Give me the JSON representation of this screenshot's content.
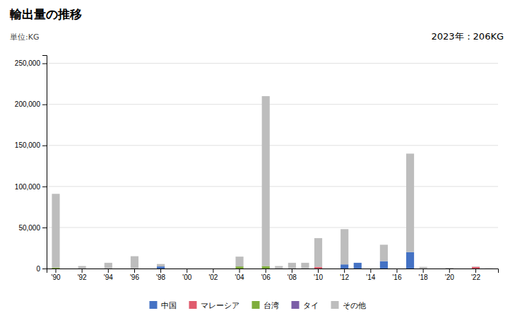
{
  "chart_data": {
    "type": "bar",
    "title": "輸出量の推移",
    "subtitle": "単位:KG",
    "annotations": [
      "2023年：206KG"
    ],
    "stacked": true,
    "grid": true,
    "legend": "bottom",
    "categories": [
      "'90",
      null,
      "'92",
      null,
      "'94",
      null,
      "'96",
      null,
      "'98",
      null,
      "'00",
      null,
      "'02",
      null,
      "'04",
      null,
      "'06",
      null,
      "'08",
      null,
      "'10",
      null,
      "'12",
      null,
      "'14",
      null,
      "'16",
      null,
      "'18",
      null,
      "'20",
      null,
      "'22",
      null
    ],
    "ylim": [
      0,
      260000
    ],
    "yticks": [
      0,
      {
        "value": 50000,
        "label": "50,000"
      },
      {
        "value": 100000,
        "label": "100,000"
      },
      {
        "value": 150000,
        "label": "150,000"
      },
      {
        "value": 200000,
        "label": "200,000"
      },
      {
        "value": 250000,
        "label": "250,000"
      }
    ],
    "series": [
      {
        "name": "中国",
        "color": "#4472c4",
        "values": [
          0,
          0,
          0,
          0,
          0,
          0,
          0,
          0,
          2500,
          0,
          0,
          0,
          0,
          0,
          0,
          0,
          0,
          0,
          0,
          0,
          0,
          0,
          5000,
          7000,
          0,
          9000,
          0,
          20000,
          0,
          0,
          0,
          0,
          0,
          0
        ]
      },
      {
        "name": "マレーシア",
        "color": "#e05c6e",
        "values": [
          0,
          0,
          0,
          0,
          0,
          0,
          0,
          0,
          0,
          0,
          0,
          0,
          0,
          0,
          0,
          0,
          0,
          0,
          0,
          0,
          2000,
          0,
          0,
          0,
          0,
          0,
          0,
          0,
          0,
          0,
          0,
          0,
          2000,
          0
        ]
      },
      {
        "name": "台湾",
        "color": "#7fad3c",
        "values": [
          1000,
          0,
          0,
          0,
          0,
          0,
          0,
          0,
          0,
          0,
          0,
          0,
          0,
          0,
          2500,
          0,
          3000,
          0,
          0,
          0,
          0,
          0,
          0,
          0,
          0,
          0,
          0,
          0,
          0,
          0,
          0,
          0,
          0,
          0
        ]
      },
      {
        "name": "タイ",
        "color": "#7b5ea7",
        "values": [
          0,
          0,
          0,
          0,
          0,
          0,
          0,
          0,
          0,
          0,
          0,
          0,
          0,
          0,
          0,
          0,
          0,
          0,
          0,
          0,
          0,
          0,
          0,
          0,
          0,
          0,
          0,
          0,
          0,
          0,
          0,
          0,
          0,
          0
        ]
      },
      {
        "name": "その他",
        "color": "#bdbdbd",
        "values": [
          90000,
          0,
          3000,
          0,
          7000,
          0,
          15000,
          0,
          3000,
          0,
          0,
          0,
          0,
          0,
          12000,
          0,
          207000,
          3000,
          7000,
          7000,
          35000,
          0,
          43000,
          0,
          0,
          20000,
          0,
          120000,
          2000,
          0,
          1000,
          0,
          500,
          206
        ]
      }
    ]
  }
}
